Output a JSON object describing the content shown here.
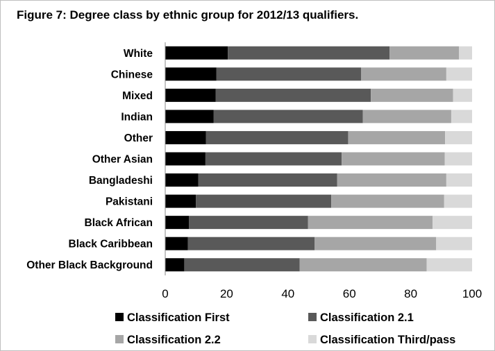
{
  "title": "Figure 7: Degree class by ethnic group for 2012/13 qualifiers.",
  "chart_data": {
    "type": "bar",
    "orientation": "horizontal",
    "stacked": true,
    "categories": [
      "White",
      "Chinese",
      "Mixed",
      "Indian",
      "Other",
      "Other Asian",
      "Bangladeshi",
      "Pakistani",
      "Black African",
      "Black Caribbean",
      "Other Black Background"
    ],
    "series": [
      {
        "name": "Classification First",
        "color": "#000000",
        "values": [
          20.4,
          16.7,
          16.4,
          15.8,
          13.3,
          13.1,
          10.8,
          10.0,
          7.7,
          7.4,
          6.2
        ]
      },
      {
        "name": "Classification 2.1",
        "color": "#595959",
        "values": [
          52.7,
          47.1,
          50.6,
          48.6,
          46.3,
          44.4,
          45.2,
          44.1,
          38.8,
          41.3,
          37.6
        ]
      },
      {
        "name": "Classification 2.2",
        "color": "#a6a6a6",
        "values": [
          22.6,
          27.8,
          26.8,
          28.8,
          31.6,
          33.6,
          35.6,
          36.8,
          40.6,
          39.6,
          41.4
        ]
      },
      {
        "name": "Classification Third/pass",
        "color": "#d9d9d9",
        "values": [
          4.3,
          8.4,
          6.2,
          6.8,
          8.8,
          8.9,
          8.4,
          9.1,
          12.9,
          11.7,
          14.8
        ]
      }
    ],
    "xlim": [
      0,
      100
    ],
    "xticks": [
      "0",
      "20",
      "40",
      "60",
      "80",
      "100"
    ],
    "grid": false,
    "legend_position": "bottom"
  }
}
